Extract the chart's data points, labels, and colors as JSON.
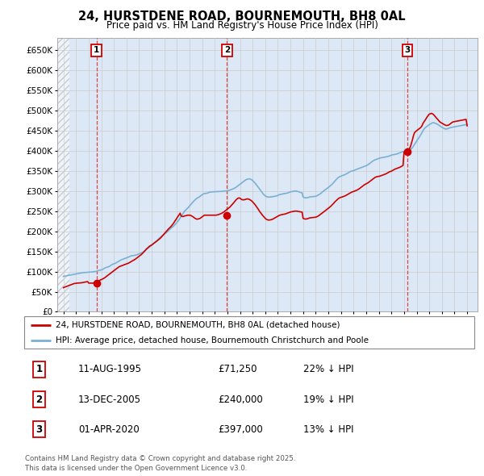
{
  "title": "24, HURSTDENE ROAD, BOURNEMOUTH, BH8 0AL",
  "subtitle": "Price paid vs. HM Land Registry's House Price Index (HPI)",
  "legend_line1": "24, HURSTDENE ROAD, BOURNEMOUTH, BH8 0AL (detached house)",
  "legend_line2": "HPI: Average price, detached house, Bournemouth Christchurch and Poole",
  "footer": "Contains HM Land Registry data © Crown copyright and database right 2025.\nThis data is licensed under the Open Government Licence v3.0.",
  "sales": [
    {
      "num": 1,
      "date": "11-AUG-1995",
      "price": 71250,
      "pct": "22%",
      "x": 1995.62
    },
    {
      "num": 2,
      "date": "13-DEC-2005",
      "price": 240000,
      "pct": "19%",
      "x": 2005.96
    },
    {
      "num": 3,
      "date": "01-APR-2020",
      "price": 397000,
      "pct": "13%",
      "x": 2020.25
    }
  ],
  "ylabel_ticks": [
    0,
    50000,
    100000,
    150000,
    200000,
    250000,
    300000,
    350000,
    400000,
    450000,
    500000,
    550000,
    600000,
    650000
  ],
  "ylim": [
    0,
    680000
  ],
  "xlim_start": 1992.5,
  "xlim_end": 2025.8,
  "grid_color": "#cccccc",
  "plot_bg": "#dce8f5",
  "red_line_color": "#cc0000",
  "blue_line_color": "#7ab0d4",
  "sale_marker_color": "#cc0000",
  "vline_color": "#dd3333",
  "hpi_x": [
    1993.0,
    1993.08,
    1993.17,
    1993.25,
    1993.33,
    1993.42,
    1993.5,
    1993.58,
    1993.67,
    1993.75,
    1993.83,
    1993.92,
    1994.0,
    1994.08,
    1994.17,
    1994.25,
    1994.33,
    1994.42,
    1994.5,
    1994.58,
    1994.67,
    1994.75,
    1994.83,
    1994.92,
    1995.0,
    1995.08,
    1995.17,
    1995.25,
    1995.33,
    1995.42,
    1995.5,
    1995.58,
    1995.67,
    1995.75,
    1995.83,
    1995.92,
    1996.0,
    1996.08,
    1996.17,
    1996.25,
    1996.33,
    1996.42,
    1996.5,
    1996.58,
    1996.67,
    1996.75,
    1996.83,
    1996.92,
    1997.0,
    1997.08,
    1997.17,
    1997.25,
    1997.33,
    1997.42,
    1997.5,
    1997.58,
    1997.67,
    1997.75,
    1997.83,
    1997.92,
    1998.0,
    1998.08,
    1998.17,
    1998.25,
    1998.33,
    1998.42,
    1998.5,
    1998.58,
    1998.67,
    1998.75,
    1998.83,
    1998.92,
    1999.0,
    1999.08,
    1999.17,
    1999.25,
    1999.33,
    1999.42,
    1999.5,
    1999.58,
    1999.67,
    1999.75,
    1999.83,
    1999.92,
    2000.0,
    2000.08,
    2000.17,
    2000.25,
    2000.33,
    2000.42,
    2000.5,
    2000.58,
    2000.67,
    2000.75,
    2000.83,
    2000.92,
    2001.0,
    2001.08,
    2001.17,
    2001.25,
    2001.33,
    2001.42,
    2001.5,
    2001.58,
    2001.67,
    2001.75,
    2001.83,
    2001.92,
    2002.0,
    2002.08,
    2002.17,
    2002.25,
    2002.33,
    2002.42,
    2002.5,
    2002.58,
    2002.67,
    2002.75,
    2002.83,
    2002.92,
    2003.0,
    2003.08,
    2003.17,
    2003.25,
    2003.33,
    2003.42,
    2003.5,
    2003.58,
    2003.67,
    2003.75,
    2003.83,
    2003.92,
    2004.0,
    2004.08,
    2004.17,
    2004.25,
    2004.33,
    2004.42,
    2004.5,
    2004.58,
    2004.67,
    2004.75,
    2004.83,
    2004.92,
    2005.0,
    2005.08,
    2005.17,
    2005.25,
    2005.33,
    2005.42,
    2005.5,
    2005.58,
    2005.67,
    2005.75,
    2005.83,
    2005.92,
    2006.0,
    2006.08,
    2006.17,
    2006.25,
    2006.33,
    2006.42,
    2006.5,
    2006.58,
    2006.67,
    2006.75,
    2006.83,
    2006.92,
    2007.0,
    2007.08,
    2007.17,
    2007.25,
    2007.33,
    2007.42,
    2007.5,
    2007.58,
    2007.67,
    2007.75,
    2007.83,
    2007.92,
    2008.0,
    2008.08,
    2008.17,
    2008.25,
    2008.33,
    2008.42,
    2008.5,
    2008.58,
    2008.67,
    2008.75,
    2008.83,
    2008.92,
    2009.0,
    2009.08,
    2009.17,
    2009.25,
    2009.33,
    2009.42,
    2009.5,
    2009.58,
    2009.67,
    2009.75,
    2009.83,
    2009.92,
    2010.0,
    2010.08,
    2010.17,
    2010.25,
    2010.33,
    2010.42,
    2010.5,
    2010.58,
    2010.67,
    2010.75,
    2010.83,
    2010.92,
    2011.0,
    2011.08,
    2011.17,
    2011.25,
    2011.33,
    2011.42,
    2011.5,
    2011.58,
    2011.67,
    2011.75,
    2011.83,
    2011.92,
    2012.0,
    2012.08,
    2012.17,
    2012.25,
    2012.33,
    2012.42,
    2012.5,
    2012.58,
    2012.67,
    2012.75,
    2012.83,
    2012.92,
    2013.0,
    2013.08,
    2013.17,
    2013.25,
    2013.33,
    2013.42,
    2013.5,
    2013.58,
    2013.67,
    2013.75,
    2013.83,
    2013.92,
    2014.0,
    2014.08,
    2014.17,
    2014.25,
    2014.33,
    2014.42,
    2014.5,
    2014.58,
    2014.67,
    2014.75,
    2014.83,
    2014.92,
    2015.0,
    2015.08,
    2015.17,
    2015.25,
    2015.33,
    2015.42,
    2015.5,
    2015.58,
    2015.67,
    2015.75,
    2015.83,
    2015.92,
    2016.0,
    2016.08,
    2016.17,
    2016.25,
    2016.33,
    2016.42,
    2016.5,
    2016.58,
    2016.67,
    2016.75,
    2016.83,
    2016.92,
    2017.0,
    2017.08,
    2017.17,
    2017.25,
    2017.33,
    2017.42,
    2017.5,
    2017.58,
    2017.67,
    2017.75,
    2017.83,
    2017.92,
    2018.0,
    2018.08,
    2018.17,
    2018.25,
    2018.33,
    2018.42,
    2018.5,
    2018.58,
    2018.67,
    2018.75,
    2018.83,
    2018.92,
    2019.0,
    2019.08,
    2019.17,
    2019.25,
    2019.33,
    2019.42,
    2019.5,
    2019.58,
    2019.67,
    2019.75,
    2019.83,
    2019.92,
    2020.0,
    2020.08,
    2020.17,
    2020.25,
    2020.33,
    2020.42,
    2020.5,
    2020.58,
    2020.67,
    2020.75,
    2020.83,
    2020.92,
    2021.0,
    2021.08,
    2021.17,
    2021.25,
    2021.33,
    2021.42,
    2021.5,
    2021.58,
    2021.67,
    2021.75,
    2021.83,
    2021.92,
    2022.0,
    2022.08,
    2022.17,
    2022.25,
    2022.33,
    2022.42,
    2022.5,
    2022.58,
    2022.67,
    2022.75,
    2022.83,
    2022.92,
    2023.0,
    2023.08,
    2023.17,
    2023.25,
    2023.33,
    2023.42,
    2023.5,
    2023.58,
    2023.67,
    2023.75,
    2023.83,
    2023.92,
    2024.0,
    2024.08,
    2024.17,
    2024.25,
    2024.33,
    2024.42,
    2024.5,
    2024.58,
    2024.67,
    2024.75,
    2024.83,
    2024.92,
    2025.0
  ],
  "hpi_y": [
    88000,
    88500,
    89000,
    89500,
    90000,
    90500,
    91000,
    91500,
    92000,
    92500,
    93000,
    93500,
    94000,
    94500,
    95000,
    95500,
    96000,
    96500,
    97000,
    97200,
    97400,
    97600,
    97800,
    98000,
    98200,
    98500,
    98800,
    99100,
    99400,
    99700,
    100000,
    100300,
    101000,
    102000,
    103000,
    103500,
    104000,
    105000,
    106500,
    108000,
    109500,
    110500,
    111000,
    112000,
    113500,
    115000,
    117000,
    118500,
    119000,
    120000,
    121500,
    123000,
    124500,
    126000,
    127500,
    129000,
    130000,
    131000,
    132000,
    133000,
    134000,
    135000,
    136000,
    137500,
    138500,
    139000,
    139500,
    140000,
    140500,
    141000,
    142000,
    143000,
    144000,
    145000,
    146000,
    147500,
    149000,
    151000,
    153000,
    155000,
    157000,
    159000,
    161000,
    163500,
    166000,
    168000,
    170000,
    172000,
    174500,
    177000,
    179500,
    182000,
    184500,
    187000,
    189000,
    191000,
    193000,
    195000,
    197000,
    199500,
    202000,
    204500,
    207000,
    209000,
    211000,
    213500,
    216000,
    219000,
    222000,
    225500,
    229000,
    233000,
    237000,
    241000,
    245000,
    249000,
    252000,
    254500,
    257000,
    260000,
    263000,
    266000,
    269000,
    272000,
    275000,
    277500,
    280000,
    282000,
    283500,
    285000,
    287000,
    289000,
    291000,
    292500,
    293500,
    294000,
    294500,
    295000,
    296000,
    297000,
    297500,
    297800,
    298000,
    298200,
    298300,
    298400,
    298500,
    298600,
    298700,
    298800,
    299000,
    299200,
    299500,
    299800,
    300000,
    300200,
    300500,
    301000,
    302000,
    303000,
    304000,
    305000,
    306000,
    307500,
    309000,
    311000,
    313000,
    315000,
    317000,
    319000,
    321000,
    323000,
    325000,
    327000,
    328500,
    329500,
    330000,
    330200,
    329500,
    328000,
    326000,
    323500,
    320500,
    317500,
    314000,
    310500,
    307000,
    303500,
    300000,
    296500,
    293000,
    290000,
    288000,
    286500,
    285500,
    285000,
    285000,
    285200,
    285500,
    286000,
    286500,
    287000,
    287500,
    288000,
    289000,
    290500,
    291500,
    292000,
    292500,
    293000,
    293500,
    294000,
    294500,
    295000,
    296000,
    297000,
    298000,
    298500,
    299000,
    299500,
    300000,
    300000,
    299500,
    299000,
    298000,
    297000,
    296000,
    295500,
    285000,
    284000,
    283000,
    283000,
    283500,
    284000,
    285000,
    285500,
    285800,
    286000,
    286200,
    286500,
    287000,
    288000,
    289500,
    291000,
    292500,
    294500,
    297000,
    299000,
    301000,
    303000,
    305000,
    307000,
    309000,
    311000,
    313000,
    315500,
    318000,
    321000,
    324000,
    327000,
    330000,
    332500,
    334500,
    336000,
    337000,
    338000,
    339000,
    340000,
    341000,
    342500,
    344000,
    345500,
    347000,
    348500,
    349500,
    350000,
    351000,
    352000,
    353000,
    354000,
    355000,
    356000,
    357000,
    358000,
    359000,
    360000,
    361000,
    362000,
    363000,
    364500,
    366000,
    368000,
    370000,
    372000,
    374000,
    375500,
    377000,
    378000,
    379000,
    380000,
    381000,
    382000,
    382500,
    383000,
    383500,
    384000,
    384500,
    385000,
    385500,
    386000,
    387000,
    388000,
    389000,
    390000,
    390500,
    391000,
    391500,
    392000,
    393000,
    394000,
    395000,
    396000,
    397000,
    398000,
    399000,
    400000,
    400500,
    400800,
    401000,
    401500,
    403000,
    405000,
    408000,
    412000,
    416000,
    420000,
    424000,
    428000,
    432000,
    436000,
    440000,
    445000,
    450000,
    454000,
    457000,
    459000,
    461000,
    463000,
    465000,
    466500,
    468000,
    469500,
    470000,
    469000,
    468000,
    467000,
    465500,
    464000,
    462000,
    460000,
    458500,
    457000,
    455500,
    454500,
    454000,
    454500,
    455500,
    456500,
    457500,
    458000,
    458500,
    459000,
    459500,
    460000,
    460500,
    461000,
    461500,
    462000,
    462500,
    463000,
    463500,
    464000,
    464500,
    465000,
    465000
  ],
  "price_y": [
    60000,
    61000,
    62000,
    63000,
    64000,
    65000,
    66000,
    67000,
    68000,
    69000,
    70000,
    70500,
    71000,
    71200,
    71400,
    71600,
    71800,
    72000,
    72500,
    73000,
    73500,
    74000,
    74500,
    75000,
    71250,
    71250,
    71250,
    71250,
    71250,
    71250,
    71250,
    71250,
    73000,
    75000,
    77000,
    79000,
    80000,
    81000,
    82500,
    84000,
    86000,
    88000,
    90000,
    92000,
    94000,
    96000,
    98000,
    100000,
    102000,
    104000,
    106000,
    108000,
    110000,
    112000,
    113000,
    114000,
    115000,
    116000,
    117000,
    118000,
    119000,
    120000,
    121000,
    122500,
    124000,
    125500,
    127000,
    128500,
    130000,
    132000,
    134000,
    136000,
    138000,
    140000,
    142000,
    144500,
    147000,
    150000,
    153000,
    156000,
    158500,
    161000,
    163000,
    164500,
    166000,
    168000,
    170000,
    172000,
    174000,
    176000,
    178000,
    180000,
    182500,
    185000,
    188000,
    191000,
    194000,
    197000,
    200000,
    203000,
    206000,
    208500,
    211000,
    214000,
    217500,
    221000,
    225000,
    229000,
    233000,
    237000,
    241000,
    245000,
    238000,
    237000,
    236500,
    238000,
    238500,
    239000,
    240000,
    240000,
    240000,
    239500,
    238000,
    236500,
    234500,
    232500,
    231000,
    230000,
    230500,
    231000,
    232000,
    234000,
    236000,
    238000,
    240000,
    240000,
    240000,
    240000,
    240000,
    240000,
    240000,
    240000,
    240000,
    240000,
    240000,
    240000,
    240500,
    241000,
    242000,
    243000,
    244000,
    245500,
    247000,
    249000,
    251000,
    253000,
    255000,
    257000,
    259500,
    262000,
    265000,
    268000,
    271000,
    274000,
    277500,
    280000,
    282000,
    283000,
    282000,
    280000,
    278500,
    278000,
    278500,
    279000,
    280000,
    280500,
    280000,
    279000,
    277500,
    275500,
    273000,
    270000,
    267000,
    263500,
    260000,
    256000,
    252000,
    248000,
    244500,
    241000,
    238000,
    235000,
    232000,
    230000,
    228500,
    228000,
    228000,
    228500,
    229000,
    230000,
    231500,
    233000,
    234500,
    236000,
    237500,
    239000,
    240000,
    241000,
    241500,
    242000,
    242500,
    243000,
    244000,
    245000,
    246000,
    247000,
    248000,
    248500,
    249000,
    249500,
    250000,
    250200,
    250000,
    249500,
    249000,
    248500,
    248000,
    247500,
    232000,
    231000,
    230500,
    230500,
    231000,
    232000,
    233000,
    233500,
    233800,
    234000,
    234200,
    234500,
    235000,
    236000,
    237500,
    239000,
    241000,
    243000,
    245000,
    247000,
    249000,
    251000,
    253000,
    255000,
    257000,
    259000,
    261500,
    264000,
    266500,
    269500,
    272500,
    275000,
    277500,
    280000,
    282000,
    283500,
    284500,
    285000,
    286000,
    287000,
    288000,
    289500,
    291000,
    292500,
    294000,
    295500,
    297000,
    298000,
    299000,
    300000,
    301000,
    302000,
    303500,
    305000,
    307000,
    309000,
    311000,
    313000,
    315000,
    316500,
    318000,
    319500,
    321000,
    323000,
    325000,
    327000,
    329000,
    331000,
    333000,
    334500,
    335500,
    336000,
    336500,
    337000,
    338000,
    339000,
    340000,
    341000,
    342000,
    343000,
    344500,
    346000,
    347500,
    348500,
    349500,
    351000,
    352500,
    354000,
    355000,
    356000,
    357000,
    358000,
    359000,
    360500,
    362000,
    363500,
    397000,
    397000,
    397000,
    397000,
    400000,
    405000,
    410000,
    418000,
    428000,
    438000,
    445000,
    448000,
    450000,
    452000,
    454000,
    456000,
    458000,
    462000,
    468000,
    472000,
    476000,
    480000,
    484000,
    488000,
    491000,
    492000,
    493000,
    492000,
    490000,
    487000,
    484000,
    481000,
    478000,
    475000,
    472000,
    470000,
    468500,
    467000,
    465500,
    464000,
    463000,
    463000,
    463500,
    465000,
    467000,
    469000,
    471000,
    472000,
    472500,
    473000,
    473500,
    474000,
    474500,
    475000,
    475500,
    476000,
    476500,
    477000,
    477500,
    478000,
    462000
  ]
}
